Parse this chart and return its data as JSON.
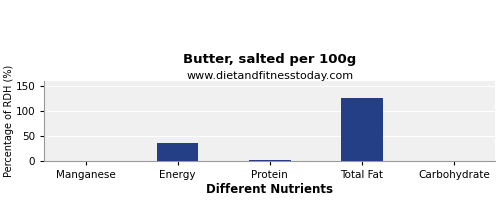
{
  "title": "Butter, salted per 100g",
  "subtitle": "www.dietandfitnesstoday.com",
  "xlabel": "Different Nutrients",
  "ylabel": "Percentage of RDH (%)",
  "categories": [
    "Manganese",
    "Energy",
    "Protein",
    "Total Fat",
    "Carbohydrate"
  ],
  "values": [
    0.0,
    36.0,
    3.0,
    126.0,
    0.5
  ],
  "bar_color": "#253F87",
  "ylim": [
    0,
    160
  ],
  "yticks": [
    0,
    50,
    100,
    150
  ],
  "background_color": "#ffffff",
  "plot_background_color": "#f0f0f0",
  "title_fontsize": 9.5,
  "subtitle_fontsize": 8,
  "xlabel_fontsize": 8.5,
  "ylabel_fontsize": 7,
  "tick_fontsize": 7.5,
  "grid_color": "#ffffff",
  "spine_color": "#999999"
}
